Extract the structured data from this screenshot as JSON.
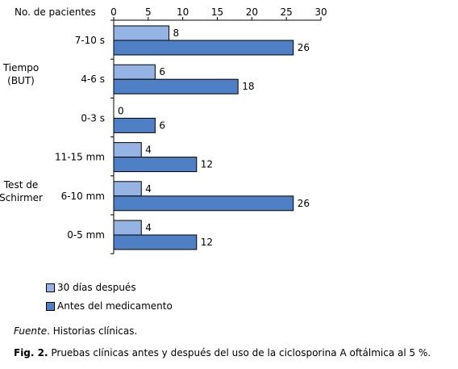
{
  "chart_data": {
    "type": "bar",
    "orientation": "horizontal",
    "axis_title": "No. de pacientes",
    "xlim": [
      0,
      30
    ],
    "xticks": [
      0,
      5,
      10,
      15,
      20,
      25,
      30
    ],
    "categories": [
      "7-10 s",
      "4-6 s",
      "0-3 s",
      "11-15 mm",
      "6-10 mm",
      "0-5 mm"
    ],
    "groups": [
      {
        "label_lines": [
          "Tiempo",
          "(BUT)"
        ],
        "categories": [
          "7-10 s",
          "4-6 s",
          "0-3 s"
        ]
      },
      {
        "label_lines": [
          "Test de",
          "Schirmer"
        ],
        "categories": [
          "11-15 mm",
          "6-10 mm",
          "0-5 mm"
        ]
      }
    ],
    "series": [
      {
        "name": "30 días después",
        "color": "#95b3e3",
        "values": [
          8,
          6,
          0,
          4,
          4,
          4
        ]
      },
      {
        "name": "Antes del medicamento",
        "color": "#4f7fc5",
        "values": [
          26,
          18,
          6,
          12,
          26,
          12
        ]
      }
    ],
    "legend_position": "bottom-left",
    "grid": false
  },
  "source_label": "Fuente",
  "source_text": ". Historias clínicas.",
  "caption_label": "Fig. 2.",
  "caption_text": " Pruebas clínicas antes y después del uso de la ciclosporina A oftálmica al 5 %."
}
